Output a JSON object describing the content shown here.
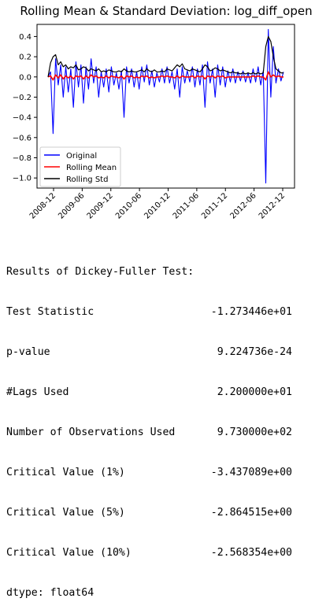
{
  "chart_data": {
    "type": "line",
    "title": "Rolling Mean & Standard Deviation: log_diff_open",
    "xlabel": "",
    "ylabel": "",
    "x_ticks": [
      "2008-12",
      "2009-06",
      "2009-12",
      "2010-06",
      "2010-12",
      "2011-06",
      "2011-12",
      "2012-06",
      "2012-12"
    ],
    "y_ticks": [
      "0.4",
      "0.2",
      "0.0",
      "−0.2",
      "−0.4",
      "−0.6",
      "−0.8",
      "−1.0"
    ],
    "ylim": [
      -1.1,
      0.52
    ],
    "x_range": [
      "2008-10",
      "2013-01"
    ],
    "grid": false,
    "legend_position": "lower-left",
    "series": [
      {
        "name": "Original",
        "color": "#0000ff",
        "values": [
          0.0,
          0.05,
          -0.56,
          0.18,
          -0.08,
          0.12,
          -0.2,
          0.1,
          -0.15,
          0.08,
          -0.3,
          0.15,
          -0.1,
          0.12,
          -0.26,
          0.1,
          -0.12,
          0.18,
          -0.06,
          0.1,
          -0.2,
          0.05,
          -0.1,
          0.08,
          -0.15,
          0.1,
          -0.08,
          0.04,
          -0.12,
          0.06,
          -0.4,
          0.1,
          -0.06,
          0.08,
          -0.1,
          0.05,
          -0.12,
          0.1,
          -0.05,
          0.12,
          -0.08,
          0.06,
          -0.1,
          0.04,
          -0.05,
          0.08,
          -0.06,
          0.1,
          -0.06,
          0.05,
          -0.12,
          0.08,
          -0.2,
          0.1,
          -0.06,
          0.06,
          -0.05,
          0.1,
          -0.1,
          0.08,
          -0.08,
          0.12,
          -0.3,
          0.15,
          -0.06,
          0.08,
          -0.2,
          0.12,
          -0.08,
          0.1,
          -0.1,
          0.06,
          -0.05,
          0.08,
          -0.06,
          0.05,
          -0.04,
          0.06,
          -0.05,
          0.04,
          -0.06,
          0.08,
          -0.05,
          0.1,
          -0.08,
          0.06,
          -1.05,
          0.47,
          -0.2,
          0.3,
          -0.06,
          0.08,
          -0.04,
          0.05
        ]
      },
      {
        "name": "Rolling Mean",
        "color": "#ff0000",
        "values": [
          0.0,
          0.01,
          -0.03,
          0.02,
          -0.01,
          0.02,
          -0.02,
          0.01,
          -0.01,
          0.01,
          -0.02,
          0.01,
          0.0,
          0.01,
          -0.02,
          0.01,
          -0.01,
          0.02,
          0.0,
          0.01,
          -0.01,
          0.0,
          -0.01,
          0.01,
          -0.01,
          0.01,
          0.0,
          0.0,
          -0.01,
          0.01,
          -0.02,
          0.01,
          0.0,
          0.01,
          -0.01,
          0.0,
          -0.01,
          0.01,
          0.0,
          0.01,
          -0.01,
          0.0,
          -0.01,
          0.0,
          0.0,
          0.01,
          0.0,
          0.01,
          0.0,
          0.0,
          -0.01,
          0.01,
          -0.01,
          0.01,
          0.0,
          0.0,
          0.0,
          0.01,
          -0.01,
          0.01,
          0.0,
          0.01,
          -0.02,
          0.01,
          0.0,
          0.01,
          -0.01,
          0.01,
          0.0,
          0.01,
          -0.01,
          0.0,
          0.0,
          0.0,
          0.0,
          0.0,
          0.0,
          0.0,
          0.0,
          0.0,
          0.0,
          0.01,
          0.0,
          0.01,
          0.0,
          0.0,
          -0.03,
          0.05,
          0.0,
          0.02,
          0.0,
          0.01,
          0.0,
          0.0
        ]
      },
      {
        "name": "Rolling Std",
        "color": "#000000",
        "values": [
          0.0,
          0.14,
          0.2,
          0.22,
          0.12,
          0.15,
          0.1,
          0.12,
          0.08,
          0.1,
          0.09,
          0.12,
          0.07,
          0.08,
          0.1,
          0.09,
          0.06,
          0.08,
          0.07,
          0.06,
          0.08,
          0.05,
          0.06,
          0.05,
          0.07,
          0.06,
          0.05,
          0.05,
          0.06,
          0.05,
          0.08,
          0.06,
          0.05,
          0.06,
          0.05,
          0.05,
          0.06,
          0.07,
          0.05,
          0.08,
          0.06,
          0.05,
          0.07,
          0.05,
          0.05,
          0.06,
          0.05,
          0.08,
          0.07,
          0.06,
          0.09,
          0.12,
          0.1,
          0.13,
          0.08,
          0.07,
          0.06,
          0.08,
          0.07,
          0.06,
          0.05,
          0.08,
          0.12,
          0.1,
          0.06,
          0.07,
          0.09,
          0.08,
          0.06,
          0.07,
          0.06,
          0.05,
          0.04,
          0.05,
          0.04,
          0.04,
          0.03,
          0.04,
          0.03,
          0.04,
          0.03,
          0.04,
          0.03,
          0.04,
          0.03,
          0.04,
          0.3,
          0.4,
          0.35,
          0.2,
          0.08,
          0.06,
          0.04,
          0.04
        ]
      }
    ]
  },
  "results": {
    "heading": "Results of Dickey-Fuller Test:",
    "rows": [
      {
        "label": "Test Statistic",
        "value": "-1.273446e+01"
      },
      {
        "label": "p-value",
        "value": "9.224736e-24"
      },
      {
        "label": "#Lags Used",
        "value": "2.200000e+01"
      },
      {
        "label": "Number of Observations Used",
        "value": "9.730000e+02"
      },
      {
        "label": "Critical Value (1%)",
        "value": "-3.437089e+00"
      },
      {
        "label": "Critical Value (5%)",
        "value": "-2.864515e+00"
      },
      {
        "label": "Critical Value (10%)",
        "value": "-2.568354e+00"
      }
    ],
    "dtype": "dtype: float64"
  }
}
